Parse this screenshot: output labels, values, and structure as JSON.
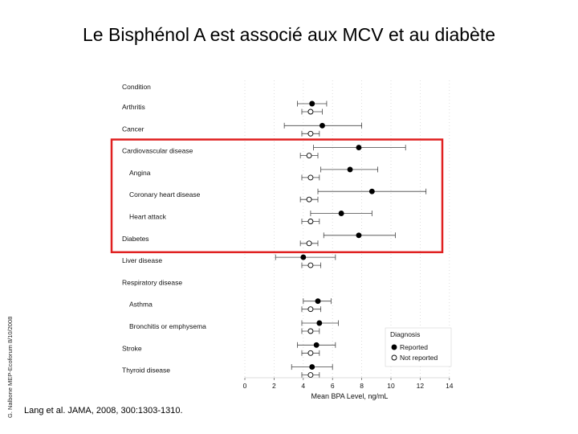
{
  "slide": {
    "title": "Le Bisphénol A est associé aux MCV et au diabète",
    "side_note": "G. Nalbone MEP-Ecoforum 8/10/2008",
    "citation": "Lang et al. JAMA, 2008, 300:1303-1310."
  },
  "chart_data": {
    "type": "scatter",
    "subtype": "forest-plot",
    "title": "",
    "row_header": "Condition",
    "xlabel": "Mean BPA Level, ng/mL",
    "xlim": [
      0,
      14
    ],
    "xticks": [
      "0",
      "2",
      "4",
      "6",
      "8",
      "10",
      "12",
      "14"
    ],
    "grid": true,
    "legend": {
      "title": "Diagnosis",
      "placement": "bottom-right",
      "entries": [
        "Reported",
        "Not reported"
      ]
    },
    "highlight": {
      "color": "#e02020",
      "from_row": "Cardiovascular disease",
      "to_row": "Diabetes"
    },
    "series": [
      {
        "name": "Reported",
        "marker": "filled-circle"
      },
      {
        "name": "Not reported",
        "marker": "open-circle"
      }
    ],
    "rows": [
      {
        "label": "Arthritis",
        "indent": false,
        "reported": {
          "mean": 4.6,
          "ci": [
            3.6,
            5.6
          ]
        },
        "not_reported": {
          "mean": 4.5,
          "ci": [
            3.9,
            5.3
          ]
        }
      },
      {
        "label": "Cancer",
        "indent": false,
        "reported": {
          "mean": 5.3,
          "ci": [
            2.7,
            8.0
          ]
        },
        "not_reported": {
          "mean": 4.5,
          "ci": [
            3.9,
            5.1
          ]
        }
      },
      {
        "label": "Cardiovascular disease",
        "indent": false,
        "reported": {
          "mean": 7.8,
          "ci": [
            4.7,
            11.0
          ]
        },
        "not_reported": {
          "mean": 4.4,
          "ci": [
            3.8,
            5.0
          ]
        }
      },
      {
        "label": "Angina",
        "indent": true,
        "reported": {
          "mean": 7.2,
          "ci": [
            5.2,
            9.1
          ]
        },
        "not_reported": {
          "mean": 4.5,
          "ci": [
            3.9,
            5.1
          ]
        }
      },
      {
        "label": "Coronary heart disease",
        "indent": true,
        "reported": {
          "mean": 8.7,
          "ci": [
            5.0,
            12.4
          ]
        },
        "not_reported": {
          "mean": 4.4,
          "ci": [
            3.8,
            5.0
          ]
        }
      },
      {
        "label": "Heart attack",
        "indent": true,
        "reported": {
          "mean": 6.6,
          "ci": [
            4.5,
            8.7
          ]
        },
        "not_reported": {
          "mean": 4.5,
          "ci": [
            3.9,
            5.1
          ]
        }
      },
      {
        "label": "Diabetes",
        "indent": false,
        "reported": {
          "mean": 7.8,
          "ci": [
            5.4,
            10.3
          ]
        },
        "not_reported": {
          "mean": 4.4,
          "ci": [
            3.8,
            5.0
          ]
        }
      },
      {
        "label": "Liver disease",
        "indent": false,
        "reported": {
          "mean": 4.0,
          "ci": [
            2.1,
            6.2
          ]
        },
        "not_reported": {
          "mean": 4.5,
          "ci": [
            3.9,
            5.2
          ]
        }
      },
      {
        "label": "Respiratory disease",
        "indent": false,
        "reported": null,
        "not_reported": null
      },
      {
        "label": "Asthma",
        "indent": true,
        "reported": {
          "mean": 5.0,
          "ci": [
            4.0,
            5.9
          ]
        },
        "not_reported": {
          "mean": 4.5,
          "ci": [
            3.9,
            5.2
          ]
        }
      },
      {
        "label": "Bronchitis or emphysema",
        "indent": true,
        "reported": {
          "mean": 5.1,
          "ci": [
            3.9,
            6.4
          ]
        },
        "not_reported": {
          "mean": 4.5,
          "ci": [
            3.9,
            5.1
          ]
        }
      },
      {
        "label": "Stroke",
        "indent": false,
        "reported": {
          "mean": 4.9,
          "ci": [
            3.6,
            6.2
          ]
        },
        "not_reported": {
          "mean": 4.5,
          "ci": [
            3.9,
            5.1
          ]
        }
      },
      {
        "label": "Thyroid disease",
        "indent": false,
        "reported": {
          "mean": 4.6,
          "ci": [
            3.2,
            6.0
          ]
        },
        "not_reported": {
          "mean": 4.5,
          "ci": [
            3.9,
            5.1
          ]
        }
      }
    ]
  }
}
